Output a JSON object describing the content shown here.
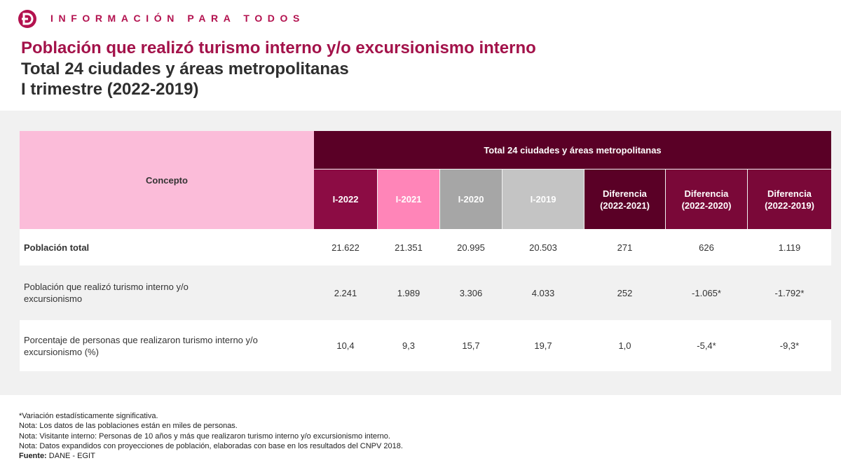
{
  "brand": {
    "tagline": "INFORMACIÓN PARA TODOS",
    "accent": "#b3124f"
  },
  "title": {
    "line1": "Población que realizó turismo interno y/o excursionismo interno",
    "line2": "Total 24 ciudades y áreas metropolitanas",
    "line3": "I trimestre (2022-2019)"
  },
  "table": {
    "concept_header": "Concepto",
    "group_header": "Total 24 ciudades y áreas metropolitanas",
    "columns": [
      {
        "line1": "I-2022",
        "line2": ""
      },
      {
        "line1": "I-2021",
        "line2": ""
      },
      {
        "line1": "I-2020",
        "line2": ""
      },
      {
        "line1": "I-2019",
        "line2": ""
      },
      {
        "line1": "Diferencia",
        "line2": "(2022-2021)"
      },
      {
        "line1": "Diferencia",
        "line2": "(2022-2020)"
      },
      {
        "line1": "Diferencia",
        "line2": "(2022-2019)"
      }
    ],
    "rows": [
      {
        "label": "Población total",
        "values": [
          "21.622",
          "21.351",
          "20.995",
          "20.503",
          "271",
          "626",
          "1.119"
        ]
      },
      {
        "label": "Población que realizó turismo interno y/o excursionismo",
        "values": [
          "2.241",
          "1.989",
          "3.306",
          "4.033",
          "252",
          "-1.065*",
          "-1.792*"
        ]
      },
      {
        "label": "Porcentaje de personas que realizaron turismo interno y/o excursionismo (%)",
        "values": [
          "10,4",
          "9,3",
          "15,7",
          "19,7",
          "1,0",
          "-5,4*",
          "-9,3*"
        ]
      }
    ]
  },
  "notes": {
    "n1": "*Variación estadísticamente significativa.",
    "n2": "Nota: Los datos de las poblaciones están en miles de personas.",
    "n3": "Nota: Visitante interno: Personas de 10 años y más que realizaron turismo interno y/o excursionismo interno.",
    "n4": "Nota: Datos expandidos con proyecciones de población, elaboradas con base en los resultados del CNPV 2018.",
    "source_label": "Fuente:",
    "source_value": "DANE - EGIT"
  }
}
